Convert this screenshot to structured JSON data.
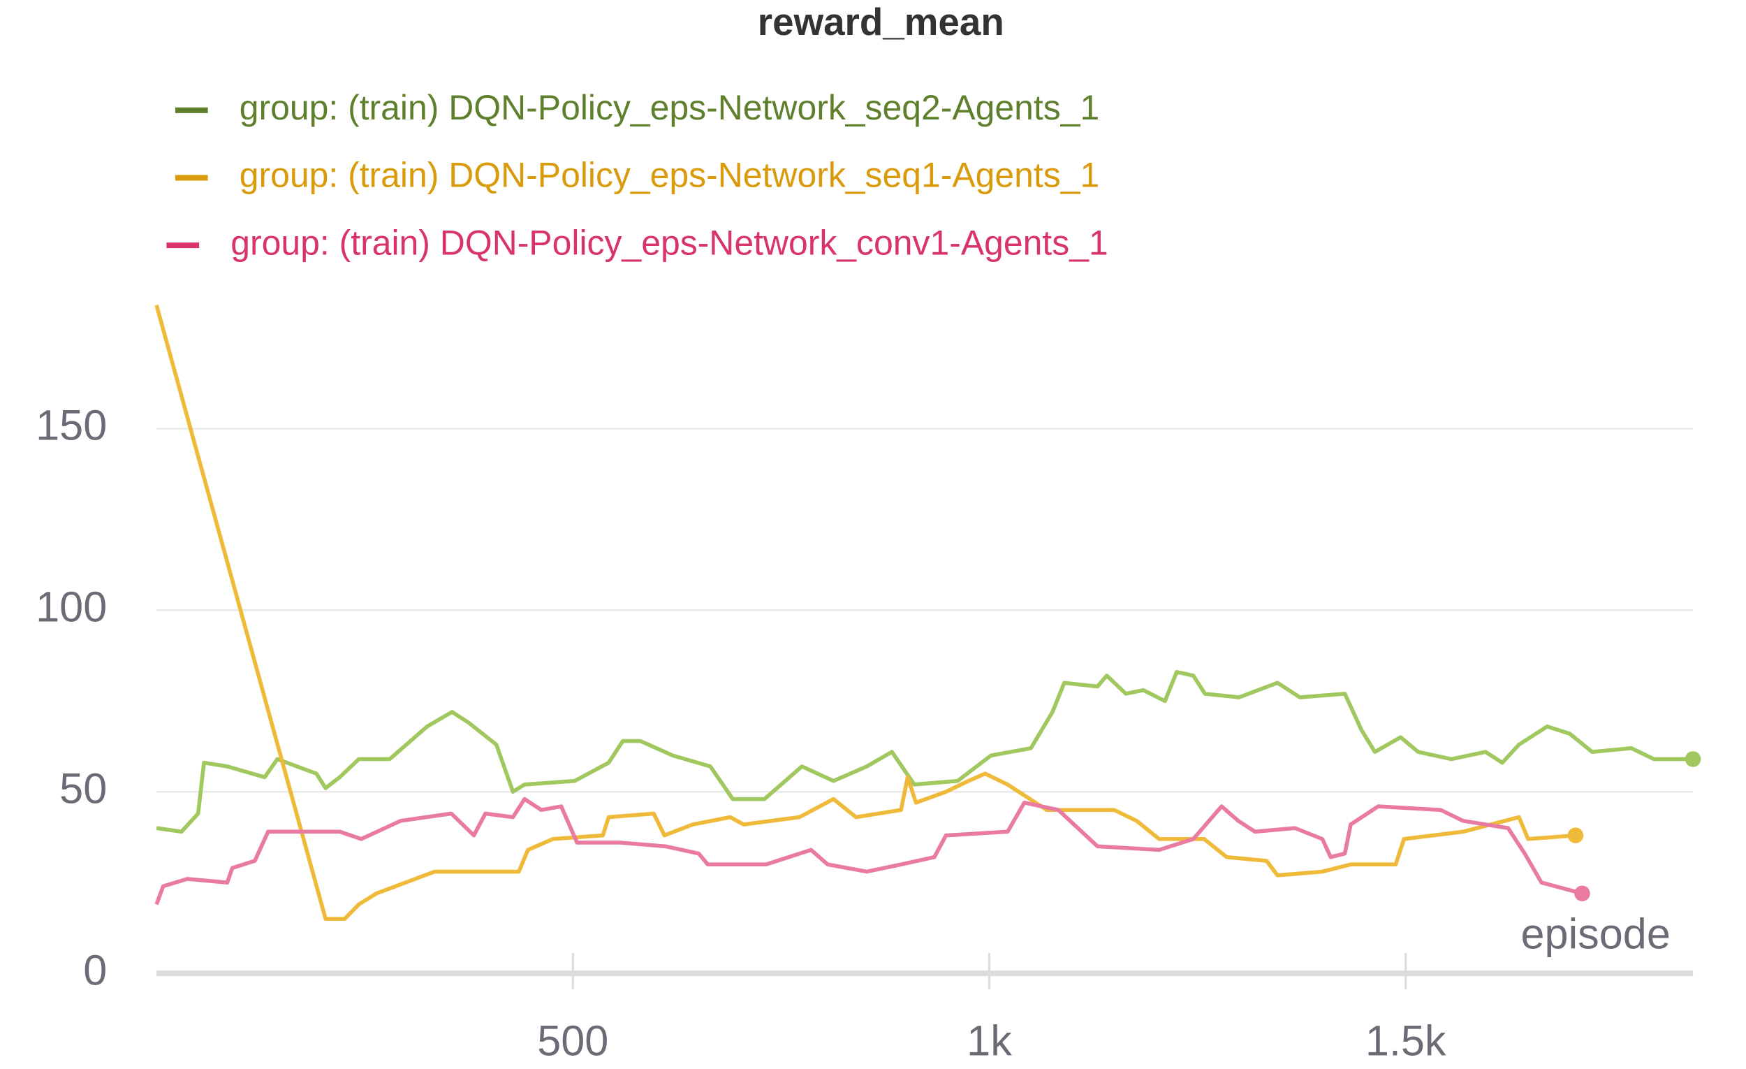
{
  "chart_data": {
    "type": "line",
    "title": "reward_mean",
    "x_label": "episode",
    "xlim": [
      0,
      1845
    ],
    "xticks": [
      500,
      {
        "value": 1000,
        "label": "1k"
      },
      {
        "value": 1500,
        "label": "1.5k"
      }
    ],
    "ylim": [
      0,
      185
    ],
    "yticks": [
      0,
      50,
      100,
      150
    ],
    "grid": true,
    "legend": "top",
    "series": [
      {
        "name": "group: (train) DQN-Policy_eps-Network_seq2-Agents_1",
        "color": "#a1c75f",
        "legend_color": "#5e7f2b",
        "x": [
          0,
          30,
          50,
          57,
          85,
          130,
          145,
          192,
          203,
          220,
          243,
          280,
          325,
          355,
          375,
          408,
          428,
          442,
          502,
          543,
          560,
          581,
          620,
          665,
          692,
          730,
          775,
          813,
          853,
          883,
          910,
          962,
          1002,
          1050,
          1076,
          1090,
          1130,
          1141,
          1164,
          1185,
          1211,
          1225,
          1245,
          1259,
          1300,
          1346,
          1373,
          1427,
          1447,
          1463,
          1494,
          1515,
          1555,
          1596,
          1616,
          1636,
          1670,
          1697,
          1724,
          1771,
          1798,
          1845
        ],
        "values": [
          40,
          39,
          44,
          58,
          57,
          54,
          59,
          55,
          51,
          54,
          59,
          59,
          68,
          72,
          69,
          63,
          50,
          52,
          53,
          58,
          64,
          64,
          60,
          57,
          48,
          48,
          57,
          53,
          57,
          61,
          52,
          53,
          60,
          62,
          72,
          80,
          79,
          82,
          77,
          78,
          75,
          83,
          82,
          77,
          76,
          80,
          76,
          77,
          67,
          61,
          65,
          61,
          59,
          61,
          58,
          63,
          68,
          66,
          61,
          62,
          59,
          59
        ]
      },
      {
        "name": "group: (train) DQN-Policy_eps-Network_seq1-Agents_1",
        "color": "#efba3a",
        "legend_color": "#d99a0b",
        "x": [
          0,
          203,
          226,
          243,
          264,
          334,
          435,
          446,
          476,
          536,
          543,
          597,
          610,
          644,
          689,
          705,
          772,
          813,
          840,
          894,
          902,
          912,
          948,
          975,
          995,
          1022,
          1069,
          1150,
          1177,
          1204,
          1258,
          1285,
          1333,
          1346,
          1400,
          1434,
          1488,
          1498,
          1569,
          1636,
          1647,
          1704
        ],
        "values": [
          184,
          15,
          15,
          19,
          22,
          28,
          28,
          34,
          37,
          38,
          43,
          44,
          38,
          41,
          43,
          41,
          43,
          48,
          43,
          45,
          54,
          47,
          50,
          53,
          55,
          52,
          45,
          45,
          42,
          37,
          37,
          32,
          31,
          27,
          28,
          30,
          30,
          37,
          39,
          43,
          37,
          38
        ]
      },
      {
        "name": "group: (train) DQN-Policy_eps-Network_conv1-Agents_1",
        "color": "#e97ba3",
        "legend_color": "#d8336b",
        "x": [
          0,
          8,
          37,
          85,
          91,
          118,
          134,
          186,
          220,
          246,
          293,
          354,
          381,
          395,
          428,
          442,
          462,
          486,
          505,
          557,
          611,
          651,
          662,
          732,
          786,
          806,
          853,
          894,
          934,
          948,
          1022,
          1042,
          1083,
          1130,
          1204,
          1245,
          1279,
          1299,
          1319,
          1367,
          1400,
          1410,
          1427,
          1434,
          1467,
          1542,
          1569,
          1623,
          1643,
          1663,
          1712
        ],
        "values": [
          19,
          24,
          26,
          25,
          29,
          31,
          39,
          39,
          39,
          37,
          42,
          44,
          38,
          44,
          43,
          48,
          45,
          46,
          36,
          36,
          35,
          33,
          30,
          30,
          34,
          30,
          28,
          30,
          32,
          38,
          39,
          47,
          45,
          35,
          34,
          37,
          46,
          42,
          39,
          40,
          37,
          32,
          33,
          41,
          46,
          45,
          42,
          40,
          33,
          25,
          22
        ]
      }
    ]
  }
}
